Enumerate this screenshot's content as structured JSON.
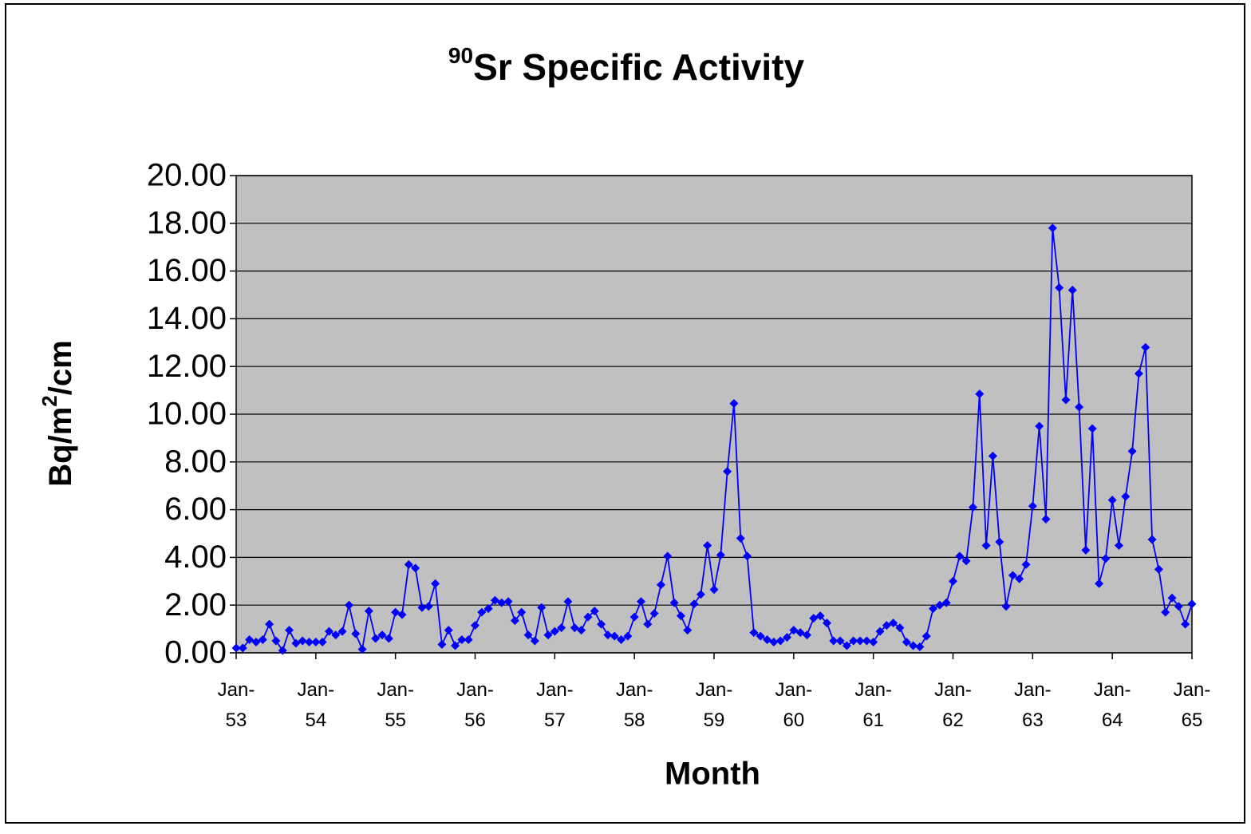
{
  "chart_data": {
    "type": "line",
    "title": {
      "sup": "90",
      "text": "Sr Specific Activity"
    },
    "xlabel": "Month",
    "ylabel": [
      {
        "text": "Bq/m"
      },
      {
        "text": "2",
        "sup": true
      },
      {
        "text": "/cm"
      }
    ],
    "color": "#0000ff",
    "plot_background": "#c0c0c0",
    "grid": true,
    "ylim": [
      0,
      20
    ],
    "yticks": [
      {
        "value": 0,
        "label": "0.00"
      },
      {
        "value": 2,
        "label": "2.00"
      },
      {
        "value": 4,
        "label": "4.00"
      },
      {
        "value": 6,
        "label": "6.00"
      },
      {
        "value": 8,
        "label": "8.00"
      },
      {
        "value": 10,
        "label": "10.00"
      },
      {
        "value": 12,
        "label": "12.00"
      },
      {
        "value": 14,
        "label": "14.00"
      },
      {
        "value": 16,
        "label": "16.00"
      },
      {
        "value": 18,
        "label": "18.00"
      },
      {
        "value": 20,
        "label": "20.00"
      }
    ],
    "xlim": [
      "Jan-53",
      "Jan-65"
    ],
    "xticks": [
      "Jan-53",
      "Jan-54",
      "Jan-55",
      "Jan-56",
      "Jan-57",
      "Jan-58",
      "Jan-59",
      "Jan-60",
      "Jan-61",
      "Jan-62",
      "Jan-63",
      "Jan-64",
      "Jan-65"
    ],
    "x": [
      "Jan-53",
      "Feb-53",
      "Mar-53",
      "Apr-53",
      "May-53",
      "Jun-53",
      "Jul-53",
      "Aug-53",
      "Sep-53",
      "Oct-53",
      "Nov-53",
      "Dec-53",
      "Jan-54",
      "Feb-54",
      "Mar-54",
      "Apr-54",
      "May-54",
      "Jun-54",
      "Jul-54",
      "Aug-54",
      "Sep-54",
      "Oct-54",
      "Nov-54",
      "Dec-54",
      "Jan-55",
      "Feb-55",
      "Mar-55",
      "Apr-55",
      "May-55",
      "Jun-55",
      "Jul-55",
      "Aug-55",
      "Sep-55",
      "Oct-55",
      "Nov-55",
      "Dec-55",
      "Jan-56",
      "Feb-56",
      "Mar-56",
      "Apr-56",
      "May-56",
      "Jun-56",
      "Jul-56",
      "Aug-56",
      "Sep-56",
      "Oct-56",
      "Nov-56",
      "Dec-56",
      "Jan-57",
      "Feb-57",
      "Mar-57",
      "Apr-57",
      "May-57",
      "Jun-57",
      "Jul-57",
      "Aug-57",
      "Sep-57",
      "Oct-57",
      "Nov-57",
      "Dec-57",
      "Jan-58",
      "Feb-58",
      "Mar-58",
      "Apr-58",
      "May-58",
      "Jun-58",
      "Jul-58",
      "Aug-58",
      "Sep-58",
      "Oct-58",
      "Nov-58",
      "Dec-58",
      "Jan-59",
      "Feb-59",
      "Mar-59",
      "Apr-59",
      "May-59",
      "Jun-59",
      "Jul-59",
      "Aug-59",
      "Sep-59",
      "Oct-59",
      "Nov-59",
      "Dec-59",
      "Jan-60",
      "Feb-60",
      "Mar-60",
      "Apr-60",
      "May-60",
      "Jun-60",
      "Jul-60",
      "Aug-60",
      "Sep-60",
      "Oct-60",
      "Nov-60",
      "Dec-60",
      "Jan-61",
      "Feb-61",
      "Mar-61",
      "Apr-61",
      "May-61",
      "Jun-61",
      "Jul-61",
      "Aug-61",
      "Sep-61",
      "Oct-61",
      "Nov-61",
      "Dec-61",
      "Jan-62",
      "Feb-62",
      "Mar-62",
      "Apr-62",
      "May-62",
      "Jun-62",
      "Jul-62",
      "Aug-62",
      "Sep-62",
      "Oct-62",
      "Nov-62",
      "Dec-62",
      "Jan-63",
      "Feb-63",
      "Mar-63",
      "Apr-63",
      "May-63",
      "Jun-63",
      "Jul-63",
      "Aug-63",
      "Sep-63",
      "Oct-63",
      "Nov-63",
      "Dec-63",
      "Jan-64",
      "Feb-64",
      "Mar-64",
      "Apr-64",
      "May-64",
      "Jun-64",
      "Jul-64",
      "Aug-64",
      "Sep-64",
      "Oct-64",
      "Nov-64",
      "Dec-64",
      "Jan-65"
    ],
    "values": [
      0.2,
      0.2,
      0.55,
      0.45,
      0.55,
      1.2,
      0.5,
      0.1,
      0.95,
      0.4,
      0.5,
      0.45,
      0.45,
      0.45,
      0.9,
      0.75,
      0.9,
      2.0,
      0.8,
      0.15,
      1.75,
      0.6,
      0.75,
      0.6,
      1.7,
      1.6,
      3.7,
      3.55,
      1.9,
      1.95,
      2.9,
      0.35,
      0.95,
      0.3,
      0.55,
      0.55,
      1.15,
      1.7,
      1.85,
      2.2,
      2.1,
      2.15,
      1.35,
      1.7,
      0.75,
      0.5,
      1.9,
      0.75,
      0.9,
      1.05,
      2.15,
      1.05,
      0.95,
      1.5,
      1.75,
      1.2,
      0.75,
      0.7,
      0.55,
      0.7,
      1.5,
      2.15,
      1.2,
      1.65,
      2.85,
      4.05,
      2.1,
      1.55,
      0.95,
      2.05,
      2.45,
      4.5,
      2.65,
      4.1,
      7.6,
      10.45,
      4.8,
      4.05,
      0.85,
      0.7,
      0.55,
      0.45,
      0.5,
      0.65,
      0.95,
      0.85,
      0.75,
      1.45,
      1.55,
      1.25,
      0.5,
      0.5,
      0.3,
      0.5,
      0.5,
      0.5,
      0.45,
      0.9,
      1.15,
      1.25,
      1.05,
      0.45,
      0.3,
      0.25,
      0.7,
      1.85,
      2.0,
      2.1,
      3.0,
      4.05,
      3.85,
      6.1,
      10.85,
      4.5,
      8.25,
      4.65,
      1.95,
      3.25,
      3.1,
      3.7,
      6.15,
      9.5,
      5.6,
      17.8,
      15.3,
      10.6,
      15.2,
      10.3,
      4.3,
      9.4,
      2.9,
      3.95,
      6.4,
      4.5,
      6.55,
      8.45,
      11.7,
      12.8,
      4.75,
      3.5,
      1.7,
      2.3,
      1.95,
      1.2,
      2.05
    ]
  }
}
